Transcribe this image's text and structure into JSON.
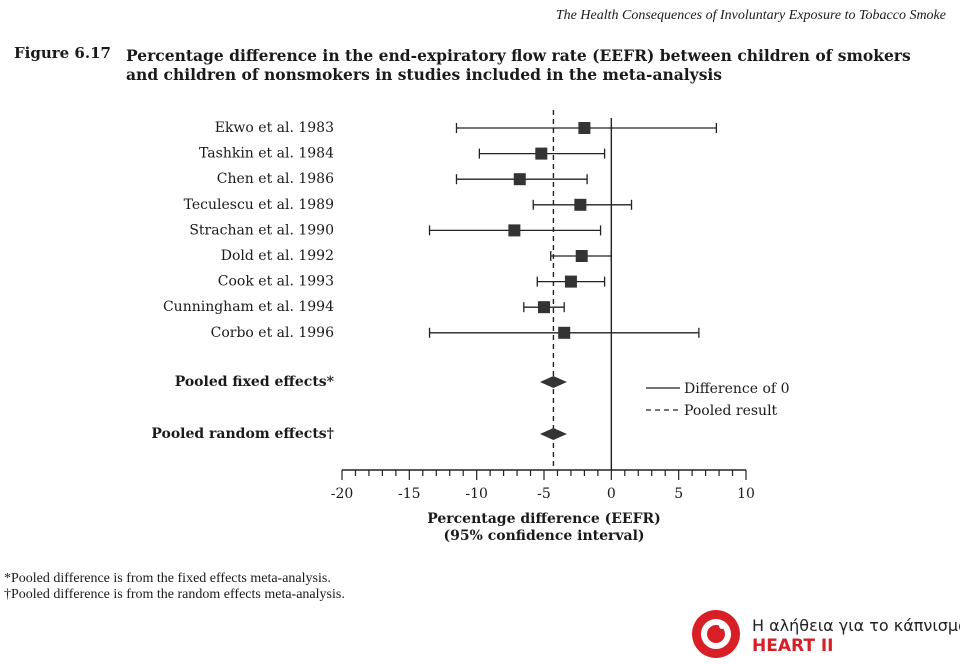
{
  "header": {
    "running_head": "The Health Consequences of Involuntary Exposure to Tobacco Smoke",
    "figure_label": "Figure 6.17",
    "figure_title": "Percentage difference in the end-expiratory flow rate (EEFR) between children of smokers and children of nonsmokers in studies included in the meta-analysis"
  },
  "chart_data": {
    "type": "forest",
    "xlabel_line1": "Percentage difference (EEFR)",
    "xlabel_line2": "(95% confidence interval)",
    "xlim": [
      -20,
      10
    ],
    "xticks": [
      -20,
      -15,
      -10,
      -5,
      0,
      5,
      10
    ],
    "xtick_labels": [
      "-20",
      "-15",
      "-10",
      "-5",
      "0",
      "5",
      "10"
    ],
    "null_value": 0,
    "pooled_line_value": -4.3,
    "studies": [
      {
        "label": "Ekwo et al. 1983",
        "estimate": -2.0,
        "lower": -11.5,
        "upper": 7.8
      },
      {
        "label": "Tashkin et al. 1984",
        "estimate": -5.2,
        "lower": -9.8,
        "upper": -0.5
      },
      {
        "label": "Chen et al. 1986",
        "estimate": -6.8,
        "lower": -11.5,
        "upper": -1.8
      },
      {
        "label": "Teculescu et al. 1989",
        "estimate": -2.3,
        "lower": -5.8,
        "upper": 1.5
      },
      {
        "label": "Strachan et al. 1990",
        "estimate": -7.2,
        "lower": -13.5,
        "upper": -0.8
      },
      {
        "label": "Dold et al. 1992",
        "estimate": -2.2,
        "lower": -4.5,
        "upper": 0.0
      },
      {
        "label": "Cook et al. 1993",
        "estimate": -3.0,
        "lower": -5.5,
        "upper": -0.5
      },
      {
        "label": "Cunningham et al. 1994",
        "estimate": -5.0,
        "lower": -6.5,
        "upper": -3.5
      },
      {
        "label": "Corbo et al. 1996",
        "estimate": -3.5,
        "lower": -13.5,
        "upper": 6.5
      }
    ],
    "pooled": [
      {
        "label": "Pooled fixed effects*",
        "estimate": -4.3,
        "lower": -5.3,
        "upper": -3.3
      },
      {
        "label": "Pooled random effects†",
        "estimate": -4.3,
        "lower": -5.3,
        "upper": -3.3
      }
    ],
    "legend": {
      "position": "right",
      "entries": [
        {
          "style": "solid",
          "label": "Difference of 0"
        },
        {
          "style": "dashed",
          "label": "Pooled result"
        }
      ]
    }
  },
  "footnotes": [
    "*Pooled difference is from the fixed effects meta-analysis.",
    "†Pooled difference is from the random effects meta-analysis."
  ],
  "logo": {
    "tagline": "Η αλήθεια για το κάπνισμα",
    "brand": "HEART II",
    "brand_color": "#d81f26"
  }
}
